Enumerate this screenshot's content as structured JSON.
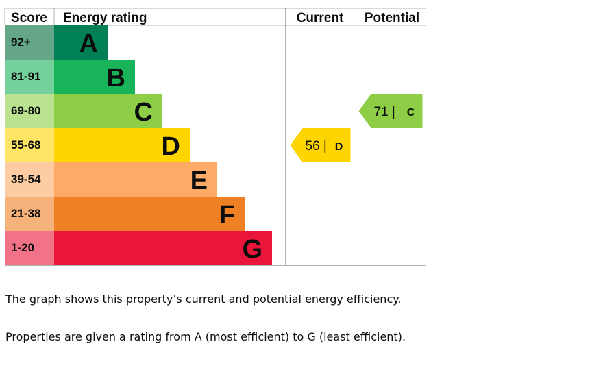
{
  "chart_data": {
    "type": "bar",
    "headers": {
      "score": "Score",
      "rating": "Energy rating",
      "current": "Current",
      "potential": "Potential"
    },
    "bands": [
      {
        "score": "92+",
        "letter": "A",
        "color": "#008054",
        "score_color": "#66a688"
      },
      {
        "score": "81-91",
        "letter": "B",
        "color": "#19b459",
        "score_color": "#75d19b"
      },
      {
        "score": "69-80",
        "letter": "C",
        "color": "#8dce46",
        "score_color": "#bbe290"
      },
      {
        "score": "55-68",
        "letter": "D",
        "color": "#ffd500",
        "score_color": "#ffe566"
      },
      {
        "score": "39-54",
        "letter": "E",
        "color": "#fcaa65",
        "score_color": "#fdcca3"
      },
      {
        "score": "21-38",
        "letter": "F",
        "color": "#ef8023",
        "score_color": "#f5b37b"
      },
      {
        "score": "1-20",
        "letter": "G",
        "color": "#e9153b",
        "score_color": "#f27388"
      }
    ],
    "current": {
      "value": 56,
      "letter": "D",
      "color": "#ffd500"
    },
    "potential": {
      "value": 71,
      "letter": "C",
      "color": "#8dce46"
    }
  },
  "description": [
    "The graph shows this property’s current and potential energy efficiency.",
    "Properties are given a rating from A (most efficient) to G (least efficient)."
  ]
}
